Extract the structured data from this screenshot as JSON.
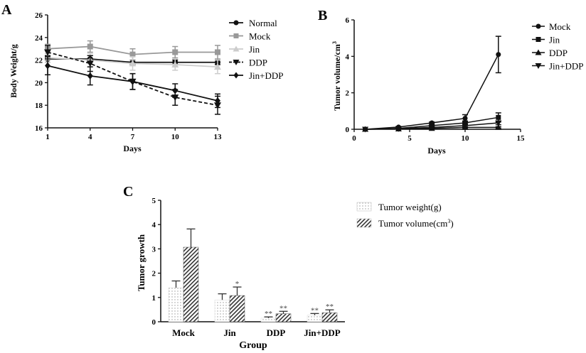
{
  "chart_data": [
    {
      "panel": "A",
      "type": "line",
      "xlabel": "Days",
      "ylabel": "Body Weight/g",
      "xticks": [
        1,
        4,
        7,
        10,
        13
      ],
      "ylim": [
        16,
        26
      ],
      "yticks": [
        16,
        18,
        20,
        22,
        24,
        26
      ],
      "x": [
        1,
        4,
        7,
        10,
        13
      ],
      "series": [
        {
          "name": "Normal",
          "marker": "circle",
          "color": "#111111",
          "dash": false,
          "values": [
            22.1,
            22.1,
            21.8,
            21.8,
            21.8
          ],
          "err": [
            0.3,
            0.3,
            0.2,
            0.2,
            0.2
          ]
        },
        {
          "name": "Mock",
          "marker": "square",
          "color": "#999999",
          "dash": false,
          "values": [
            23.0,
            23.2,
            22.5,
            22.7,
            22.7
          ],
          "err": [
            0.4,
            0.5,
            0.5,
            0.5,
            0.6
          ]
        },
        {
          "name": "Jin",
          "marker": "triangle-up",
          "color": "#cccccc",
          "dash": false,
          "values": [
            22.2,
            22.0,
            21.7,
            21.6,
            21.4
          ],
          "err": [
            0.4,
            0.6,
            0.6,
            0.5,
            0.6
          ]
        },
        {
          "name": "DDP",
          "marker": "triangle-down",
          "color": "#111111",
          "dash": true,
          "values": [
            22.7,
            21.7,
            20.1,
            18.7,
            18.0
          ],
          "err": [
            0.6,
            0.7,
            0.7,
            0.7,
            0.8
          ]
        },
        {
          "name": "Jin+DDP",
          "marker": "diamond",
          "color": "#111111",
          "dash": false,
          "values": [
            21.5,
            20.6,
            20.1,
            19.3,
            18.4
          ],
          "err": [
            0.8,
            0.8,
            0.7,
            0.6,
            0.6
          ]
        }
      ]
    },
    {
      "panel": "B",
      "type": "line",
      "xlabel": "Days",
      "ylabel": "Tumor volume/cm",
      "ylabel_sup": "3",
      "xlim": [
        0,
        15
      ],
      "xticks": [
        0,
        5,
        10,
        15
      ],
      "ylim": [
        0,
        6
      ],
      "yticks": [
        0,
        2,
        4,
        6
      ],
      "x": [
        1,
        4,
        7,
        10,
        13
      ],
      "series": [
        {
          "name": "Mock",
          "marker": "circle",
          "values": [
            0,
            0.12,
            0.35,
            0.6,
            4.1
          ],
          "err": [
            0,
            0.03,
            0.05,
            0.2,
            1.0
          ]
        },
        {
          "name": "Jin",
          "marker": "square",
          "values": [
            0,
            0.05,
            0.2,
            0.35,
            0.65
          ],
          "err": [
            0,
            0.02,
            0.04,
            0.1,
            0.25
          ]
        },
        {
          "name": "DDP",
          "marker": "triangle-up",
          "values": [
            0,
            0.02,
            0.05,
            0.1,
            0.1
          ],
          "err": [
            0,
            0.01,
            0.02,
            0.03,
            0.04
          ]
        },
        {
          "name": "Jin+DDP",
          "marker": "triangle-down",
          "values": [
            0,
            0.03,
            0.1,
            0.2,
            0.35
          ],
          "err": [
            0,
            0.01,
            0.03,
            0.06,
            0.1
          ]
        }
      ]
    },
    {
      "panel": "C",
      "type": "bar",
      "xlabel": "Group",
      "ylabel": "Tumor growth",
      "ylim": [
        0,
        5
      ],
      "yticks": [
        0,
        1,
        2,
        3,
        4,
        5
      ],
      "categories": [
        "Mock",
        "Jin",
        "DDP",
        "Jin+DDP"
      ],
      "series": [
        {
          "name": "Tumor weight(g)",
          "pattern": "dots",
          "values": [
            1.4,
            0.9,
            0.15,
            0.27
          ],
          "err": [
            0.28,
            0.25,
            0.05,
            0.07
          ],
          "annotations": [
            "",
            "",
            "**",
            "**"
          ]
        },
        {
          "name": "Tumor volume(cm",
          "name_sup": "3",
          "name_suffix": ")",
          "pattern": "hatch",
          "values": [
            3.07,
            1.08,
            0.33,
            0.37
          ],
          "err": [
            0.75,
            0.35,
            0.1,
            0.12
          ],
          "annotations": [
            "",
            "*",
            "**",
            "**"
          ]
        }
      ]
    }
  ]
}
